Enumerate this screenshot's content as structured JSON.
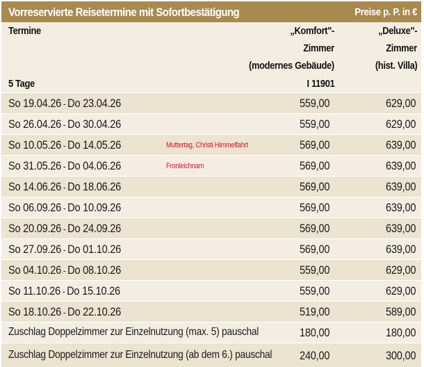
{
  "title": "Vorreservierte Reisetermine mit Sofortbestätigung",
  "price_note": "Preise p. P. in €",
  "header": {
    "termine": "Termine",
    "duration": "5 Tage",
    "komfort_lines": [
      "„Komfort\"-",
      "Zimmer",
      "(modernes Gebäude)",
      "I 11901"
    ],
    "deluxe_lines": [
      "„Deluxe\"-",
      "Zimmer",
      "(hist. Villa)"
    ]
  },
  "rows": [
    {
      "date": "So  19.04.26",
      "sep": " - ",
      "end": "Do  23.04.26",
      "note": "",
      "komfort": "559,00",
      "deluxe": "629,00"
    },
    {
      "date": "So  26.04.26",
      "sep": " - ",
      "end": "Do  30.04.26",
      "note": "",
      "komfort": "559,00",
      "deluxe": "629,00"
    },
    {
      "date": "So  10.05.26",
      "sep": " - ",
      "end": "Do  14.05.26",
      "note": "Muttertag, Christi Himmelfahrt",
      "komfort": "569,00",
      "deluxe": "639,00"
    },
    {
      "date": "So  31.05.26",
      "sep": " - ",
      "end": "Do  04.06.26",
      "note": "Fronleichnam",
      "komfort": "569,00",
      "deluxe": "639,00"
    },
    {
      "date": "So  14.06.26",
      "sep": " - ",
      "end": "Do  18.06.26",
      "note": "",
      "komfort": "569,00",
      "deluxe": "639,00"
    },
    {
      "date": "So  06.09.26",
      "sep": " - ",
      "end": "Do  10.09.26",
      "note": "",
      "komfort": "569,00",
      "deluxe": "639,00"
    },
    {
      "date": "So  20.09.26",
      "sep": " - ",
      "end": "Do  24.09.26",
      "note": "",
      "komfort": "569,00",
      "deluxe": "639,00"
    },
    {
      "date": "So  27.09.26",
      "sep": " - ",
      "end": "Do  01.10.26",
      "note": "",
      "komfort": "569,00",
      "deluxe": "639,00"
    },
    {
      "date": "So  04.10.26",
      "sep": " - ",
      "end": "Do  08.10.26",
      "note": "",
      "komfort": "559,00",
      "deluxe": "629,00"
    },
    {
      "date": "So  11.10.26",
      "sep": " - ",
      "end": "Do  15.10.26",
      "note": "",
      "komfort": "559,00",
      "deluxe": "629,00"
    },
    {
      "date": "So  18.10.26",
      "sep": " - ",
      "end": "Do  22.10.26",
      "note": "",
      "komfort": "519,00",
      "deluxe": "589,00"
    }
  ],
  "surcharges": [
    {
      "label": "Zuschlag Doppelzimmer zur Einzelnutzung (max. 5) pauschal",
      "komfort": "180,00",
      "deluxe": "180,00"
    },
    {
      "label": "Zuschlag Doppelzimmer zur Einzelnutzung (ab dem 6.) pauschal",
      "komfort": "240,00",
      "deluxe": "300,00"
    }
  ],
  "colors": {
    "title_bg": "#a88a4f",
    "row_alt": "#ece3d0",
    "row_plain": "#f4eee2",
    "note_red": "#d4142b"
  }
}
